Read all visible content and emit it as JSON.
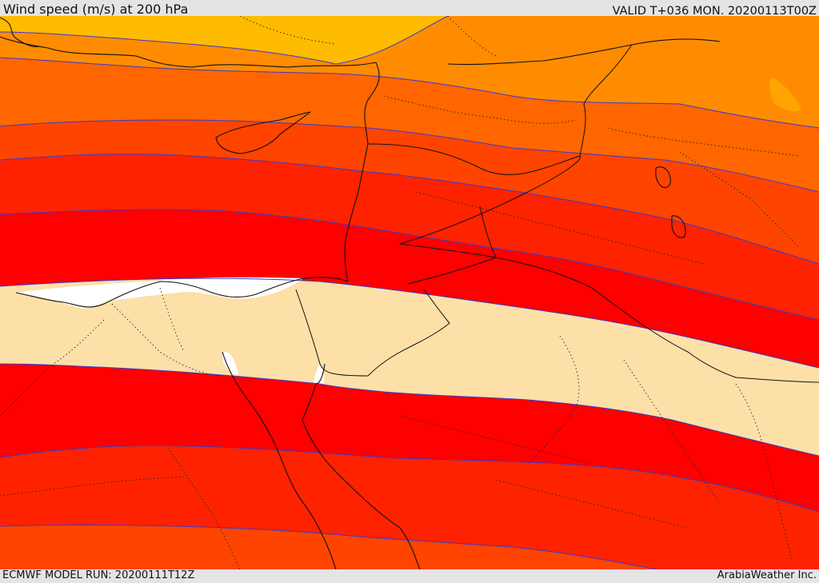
{
  "header": {
    "title": "Wind speed (m/s) at 200 hPa",
    "valid": "VALID T+036 MON. 20200113T00Z"
  },
  "footer": {
    "model_run": "ECMWF MODEL RUN: 20200111T12Z",
    "credit": "ArabiaWeather Inc."
  },
  "map": {
    "field": "wind speed 200 hPa",
    "color_scale": [
      "#ffffff",
      "#ffdfa8",
      "#ff0000",
      "#ff2200",
      "#ff4400",
      "#ff6600",
      "#ff8800",
      "#ffbb00"
    ],
    "contour_color": "#3a3ac8",
    "land_outline_color": "#111111"
  }
}
